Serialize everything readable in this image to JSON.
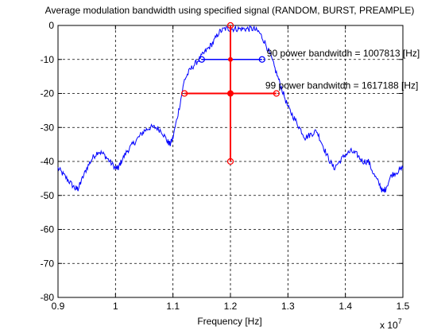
{
  "chart_data": {
    "type": "line",
    "title": "Average modulation bandwidth using specified signal (RANDOM, BURST, PREAMPLE)",
    "xlabel": "Frequency [Hz]",
    "ylabel": "",
    "x_exponent_label": "x 10",
    "x_exponent_power": "7",
    "xlim": [
      0.9,
      1.5
    ],
    "ylim": [
      -80,
      0
    ],
    "grid": true,
    "xticks": [
      0.9,
      1.0,
      1.1,
      1.2,
      1.3,
      1.4,
      1.5
    ],
    "xtick_labels": [
      "0.9",
      "1",
      "1.1",
      "1.2",
      "1.3",
      "1.4",
      "1.5"
    ],
    "yticks": [
      0,
      -10,
      -20,
      -30,
      -40,
      -50,
      -60,
      -70,
      -80
    ],
    "ytick_labels": [
      "0",
      "-10",
      "-20",
      "-30",
      "-40",
      "-50",
      "-60",
      "-70",
      "-80"
    ],
    "colors": {
      "spectrum": "#0000ff",
      "bw90": "#0000ff",
      "bw99": "#ff0000",
      "center": "#ff0000"
    },
    "series": [
      {
        "x": [
          0.9,
          0.91,
          0.92,
          0.93,
          0.935,
          0.94,
          0.95,
          0.96,
          0.97,
          0.98,
          0.99,
          1.0,
          1.005,
          1.01,
          1.02,
          1.03,
          1.04,
          1.05,
          1.06,
          1.07,
          1.08,
          1.09,
          1.095,
          1.1,
          1.11,
          1.12,
          1.13,
          1.14,
          1.15,
          1.16,
          1.17,
          1.18,
          1.19,
          1.2,
          1.21,
          1.22,
          1.23,
          1.24,
          1.25,
          1.26,
          1.27,
          1.28,
          1.29,
          1.3,
          1.31,
          1.32,
          1.33,
          1.34,
          1.35,
          1.36,
          1.37,
          1.38,
          1.39,
          1.4,
          1.41,
          1.42,
          1.43,
          1.44,
          1.45,
          1.46,
          1.465,
          1.47,
          1.48,
          1.49,
          1.5
        ],
        "y": [
          -42,
          -44,
          -46,
          -48,
          -48,
          -46,
          -42,
          -39,
          -37,
          -38,
          -40,
          -42,
          -42,
          -40,
          -37,
          -35,
          -33,
          -31,
          -30,
          -30,
          -31,
          -34,
          -35,
          -33,
          -25,
          -16,
          -13,
          -11,
          -9,
          -7,
          -5,
          -2,
          -1,
          -1,
          -1,
          -1,
          -1,
          -1,
          -2,
          -5,
          -9,
          -14,
          -19,
          -24,
          -27,
          -30,
          -33,
          -32,
          -31,
          -35,
          -39,
          -42,
          -40,
          -38,
          -37,
          -38,
          -40,
          -40,
          -44,
          -47,
          -49,
          -48,
          -44,
          -43,
          -42
        ]
      }
    ],
    "bw90": {
      "x_start": 1.15,
      "x_end": 1.255,
      "y": -10,
      "label": "90 power bandwitdh = 1007813 [Hz]"
    },
    "bw99": {
      "x_start": 1.12,
      "x_end": 1.28,
      "y": -20,
      "label": "99 power bandwitdh = 1617188 [Hz]"
    },
    "center": {
      "x": 1.2,
      "y_top": 0,
      "y_bottom": -40,
      "mid_y": -20
    }
  }
}
